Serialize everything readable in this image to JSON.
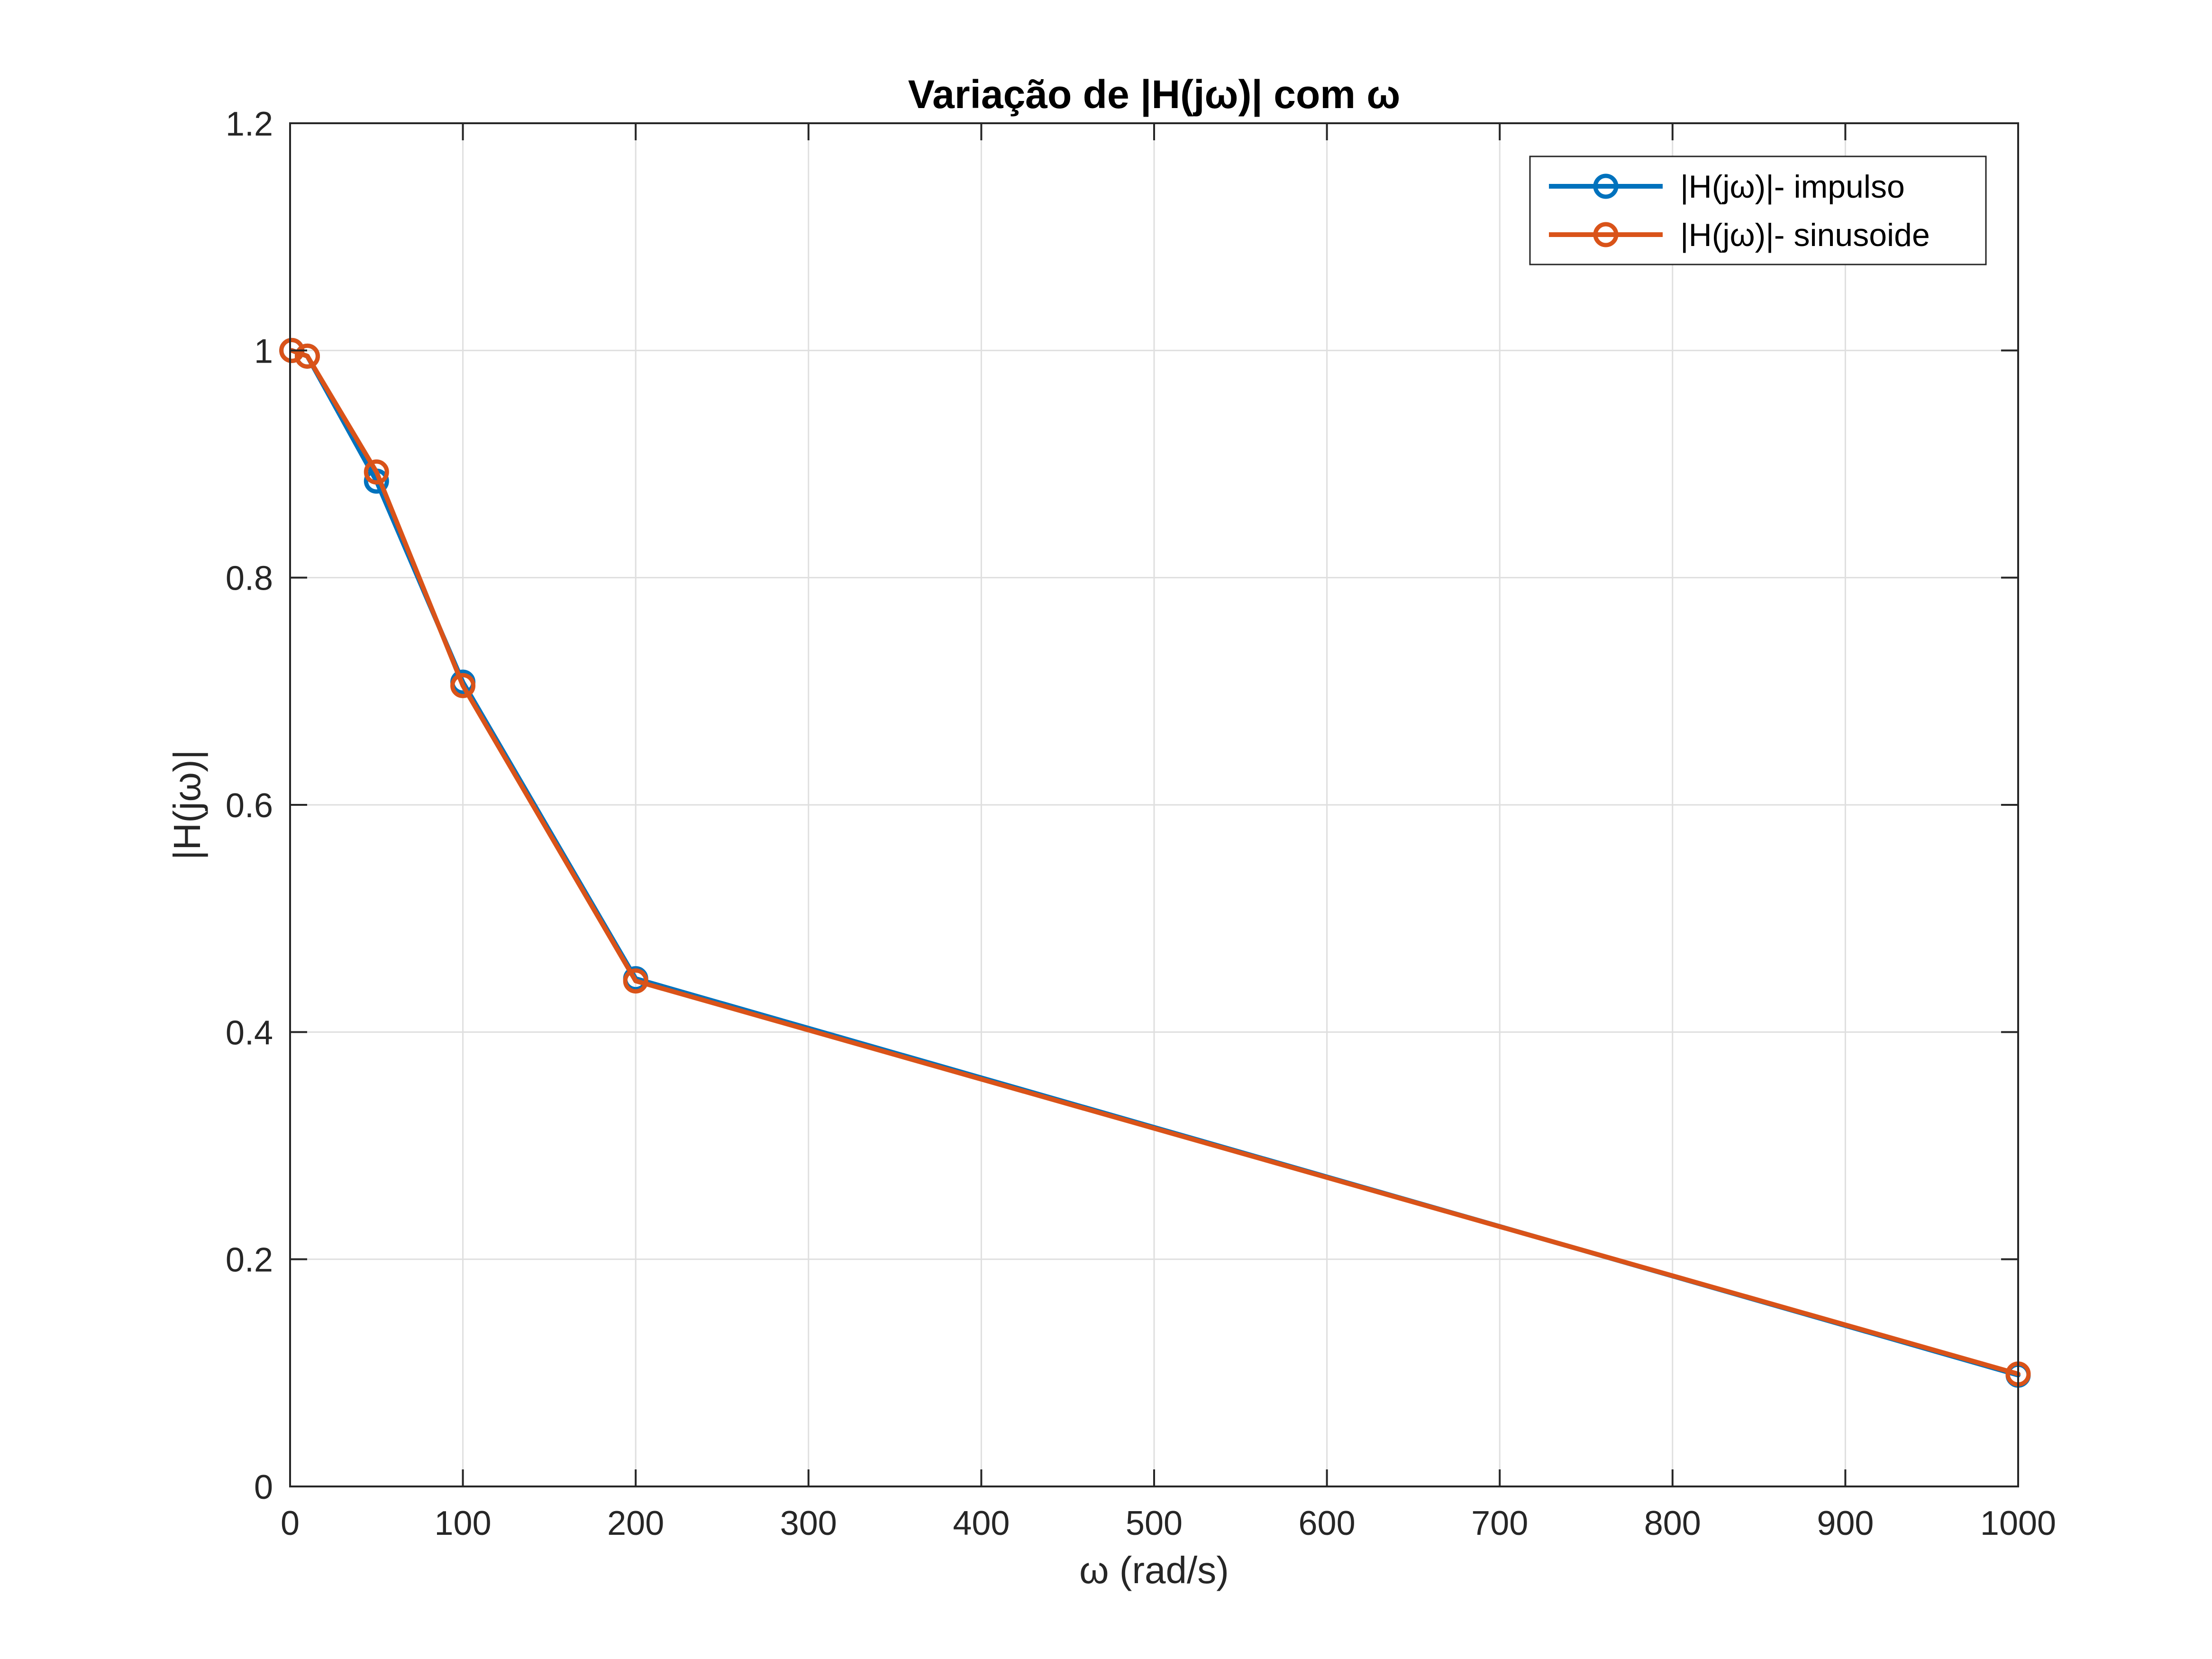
{
  "chart_data": {
    "type": "line",
    "title": "Variação de |H(jω)| com ω",
    "xlabel": "ω (rad/s)",
    "ylabel": "|H(jω)|",
    "xlim": [
      0,
      1000
    ],
    "ylim": [
      0,
      1.2
    ],
    "xticks": [
      0,
      100,
      200,
      300,
      400,
      500,
      600,
      700,
      800,
      900,
      1000
    ],
    "xtick_labels": [
      "0",
      "100",
      "200",
      "300",
      "400",
      "500",
      "600",
      "700",
      "800",
      "900",
      "1000"
    ],
    "yticks": [
      0,
      0.2,
      0.4,
      0.6,
      0.8,
      1,
      1.2
    ],
    "ytick_labels": [
      "0",
      "0.2",
      "0.4",
      "0.6",
      "0.8",
      "1",
      "1.2"
    ],
    "grid": true,
    "legend_location": "top-right",
    "series": [
      {
        "name": "|H(jω)|- impulso",
        "color": "#0072BD",
        "marker": "circle",
        "x": [
          1,
          10,
          50,
          100,
          200,
          1000
        ],
        "y": [
          1.0,
          0.995,
          0.885,
          0.708,
          0.447,
          0.098
        ]
      },
      {
        "name": "|H(jω)|- sinusoide",
        "color": "#D95319",
        "marker": "circle",
        "x": [
          1,
          10,
          50,
          100,
          200,
          1000
        ],
        "y": [
          1.0,
          0.995,
          0.893,
          0.705,
          0.445,
          0.099
        ]
      }
    ]
  }
}
